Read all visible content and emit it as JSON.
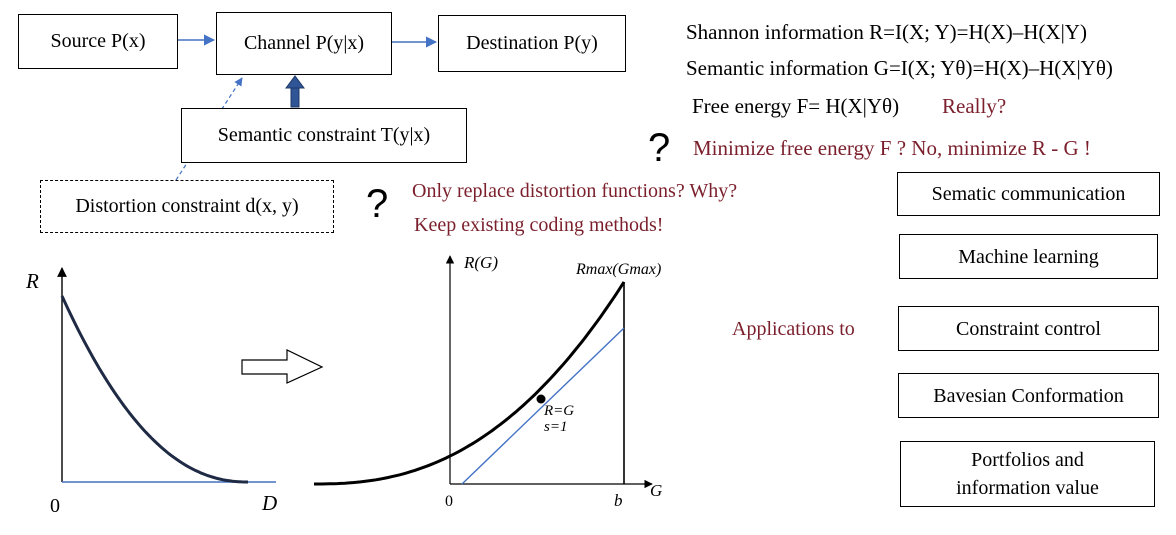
{
  "flow": {
    "source": "Source P(x)",
    "channel": "Channel  P(y|x)",
    "destination": "Destination  P(y)",
    "semantic_constraint": "Semantic constraint T(y|x)",
    "distortion_constraint": "Distortion constraint d(x, y)"
  },
  "equations": {
    "shannon": "Shannon information R=I(X; Y)=H(X)–H(X|Y)",
    "semantic": "Semantic information G=I(X; Yθ)=H(X)–H(X|Yθ)",
    "free_energy": "Free energy F= H(X|Yθ)",
    "really": "Really?",
    "minimize": "Minimize free energy F ?   No, minimize R - G !"
  },
  "questions": {
    "qmark": "?",
    "replace": "Only replace distortion  functions?  Why?",
    "keep": "Keep existing coding methods!"
  },
  "applications": {
    "label": "Applications  to",
    "items": [
      "Sematic communication",
      "Machine learning",
      "Constraint control",
      "Bavesian Conformation",
      "Portfolios and information value"
    ]
  },
  "rd_chart": {
    "ylabel": "R",
    "xlabel": "D",
    "origin": "0"
  },
  "rg_chart": {
    "ylabel": "R(G)",
    "xlabel": "G",
    "origin": "0",
    "b_label": "b",
    "max_label": "Rmax(Gmax)",
    "point_label_1": "R=G",
    "point_label_2": "s=1"
  },
  "colors": {
    "arrow": "#4472c4",
    "curve": "#1f2a44",
    "accent_red": "#7a1f2b"
  }
}
